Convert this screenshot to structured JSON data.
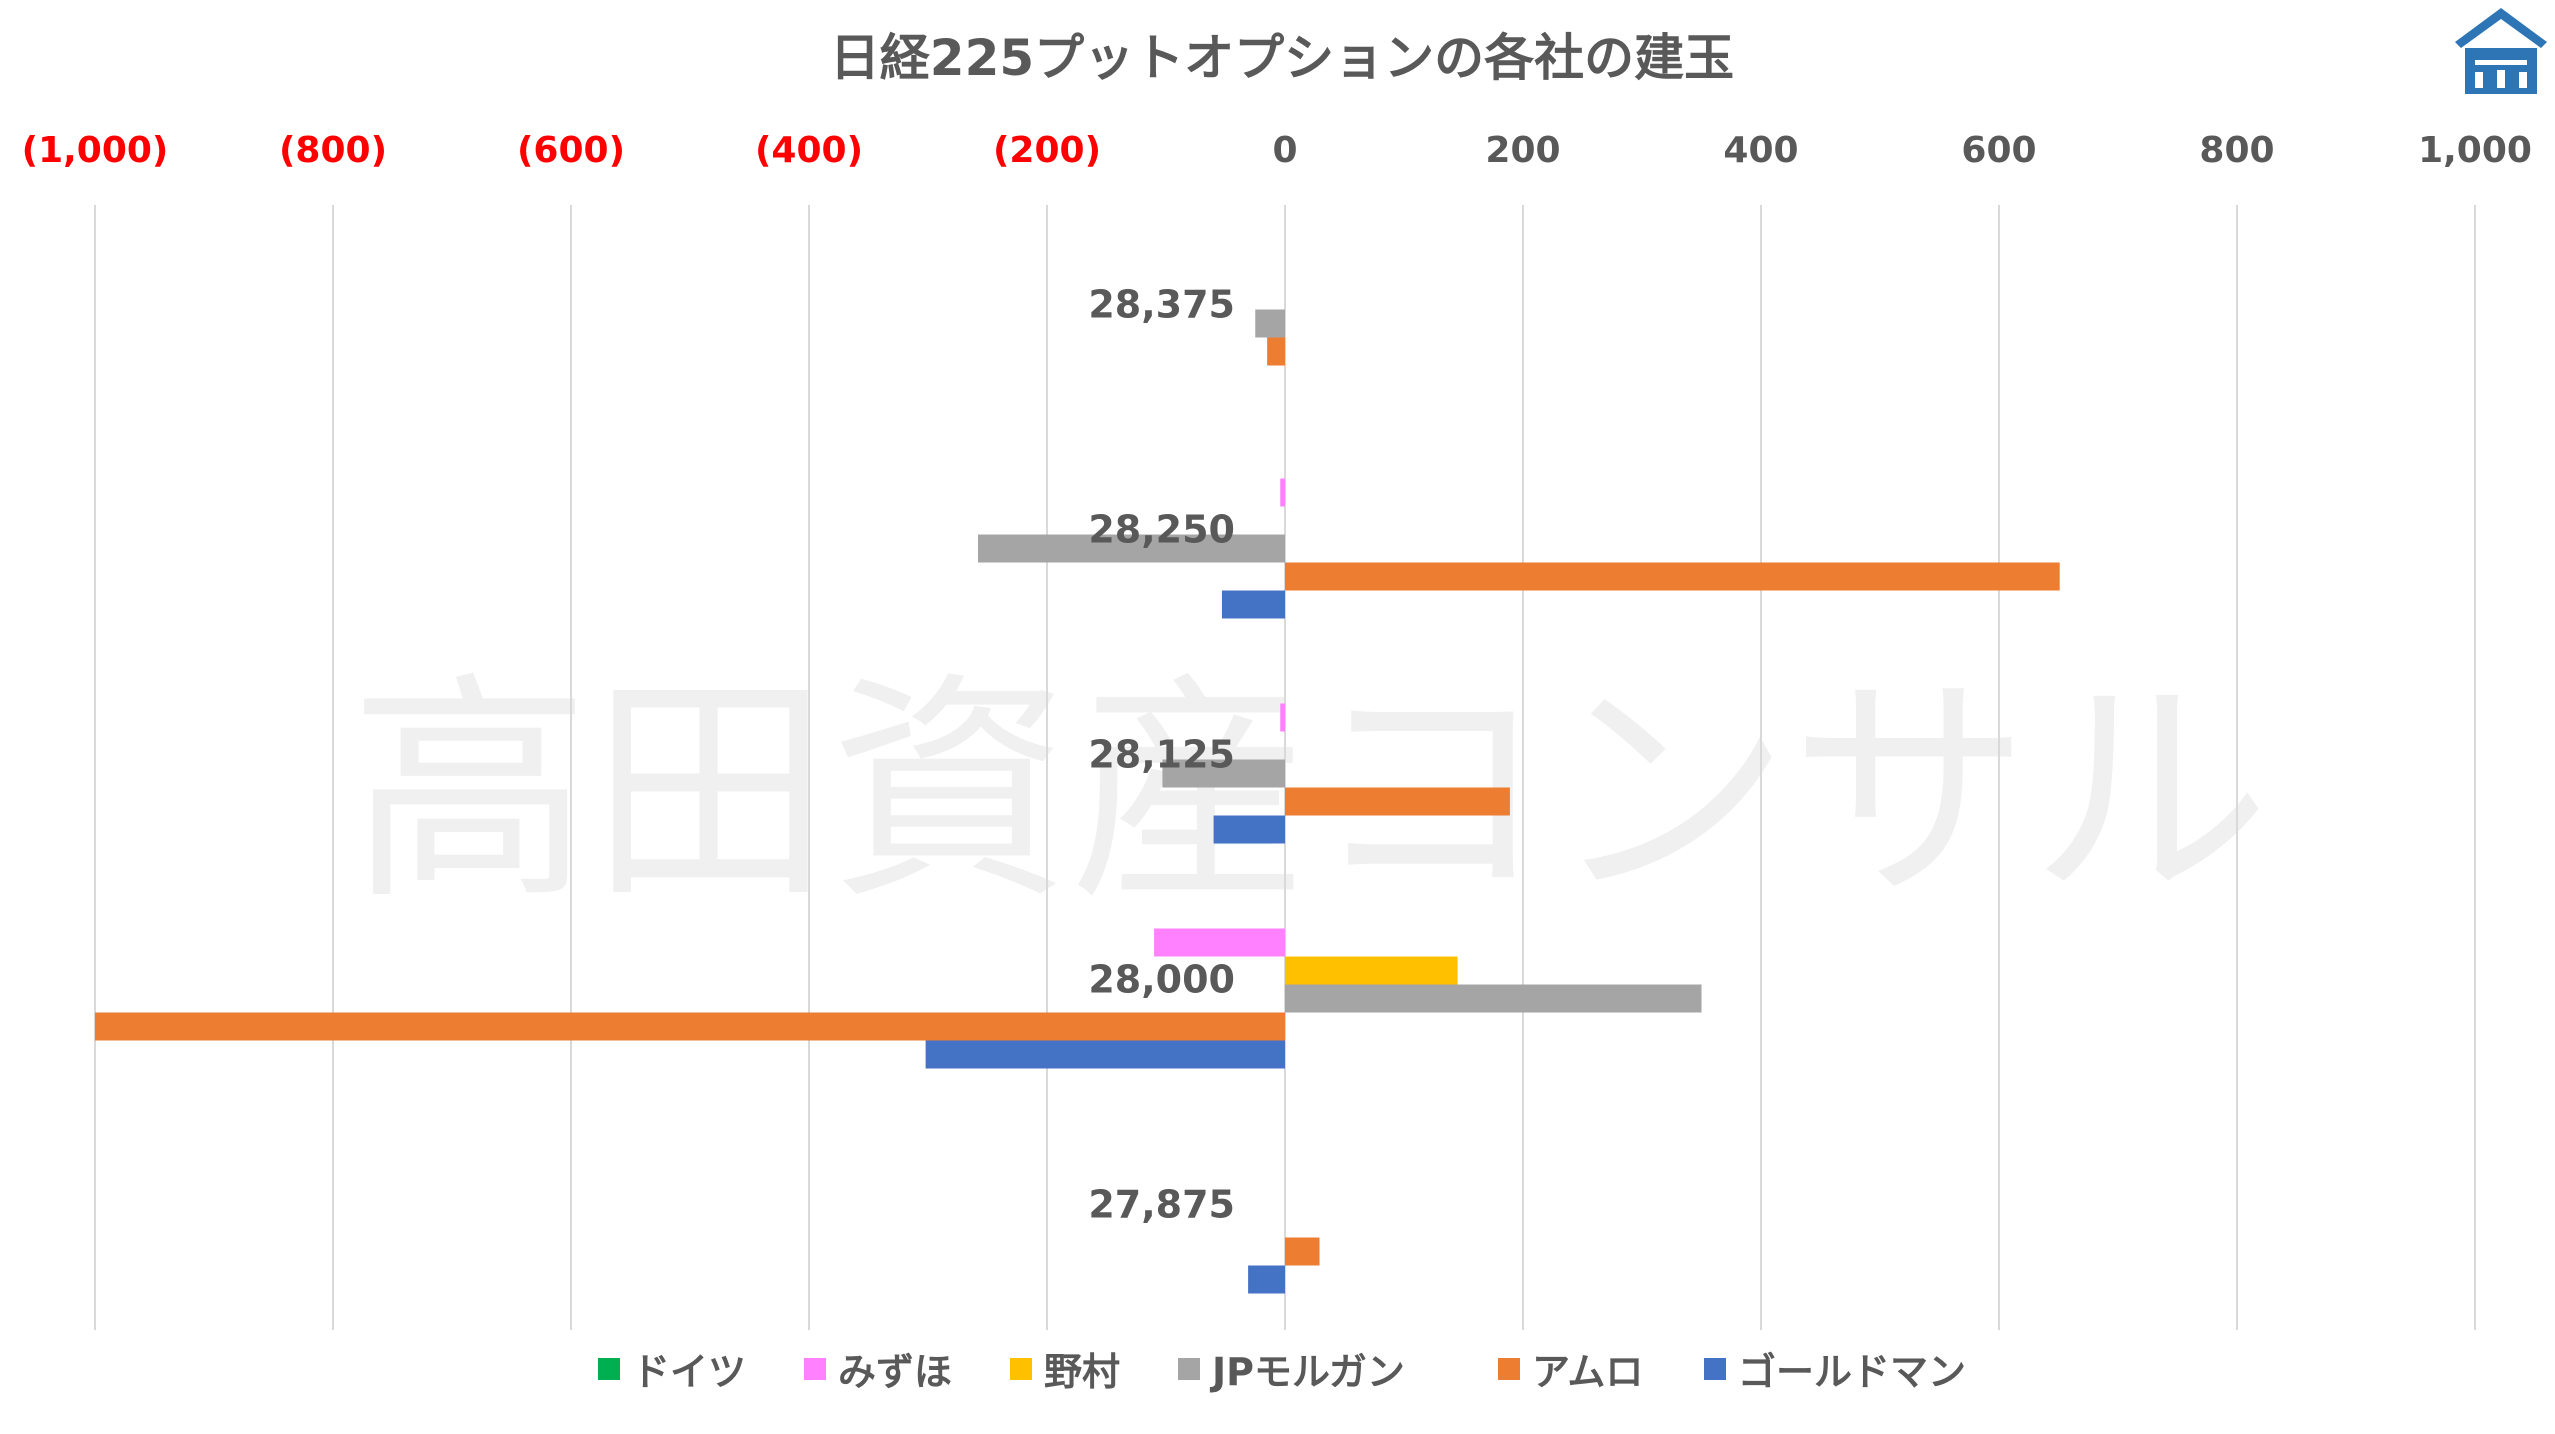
{
  "watermark": "高田資産コンサル",
  "colors": {
    "grid": "#d9d9d9",
    "tick_negative": "#ff0000",
    "tick_positive": "#595959",
    "logo": "#2e75b6"
  },
  "chart_data": {
    "type": "bar",
    "orientation": "horizontal",
    "title": "日経225プットオプションの各社の建玉",
    "xlim": [
      -1000,
      1000
    ],
    "x_ticks": [
      -1000,
      -800,
      -600,
      -400,
      -200,
      0,
      200,
      400,
      600,
      800,
      1000
    ],
    "x_tick_labels": [
      "(1,000)",
      "(800)",
      "(600)",
      "(400)",
      "(200)",
      "0",
      "200",
      "400",
      "600",
      "800",
      "1,000"
    ],
    "x_axis_position": "top",
    "grid": true,
    "legend_position": "bottom",
    "categories": [
      "28,375",
      "28,250",
      "28,125",
      "28,000",
      "27,875"
    ],
    "series": [
      {
        "name": "ドイツ",
        "color": "#00b050",
        "values": [
          0,
          0,
          0,
          0,
          0
        ]
      },
      {
        "name": "みずほ",
        "color": "#ff81ff",
        "values": [
          0,
          -4,
          -4,
          -110,
          0
        ]
      },
      {
        "name": "野村",
        "color": "#ffc000",
        "values": [
          0,
          0,
          0,
          145,
          0
        ]
      },
      {
        "name": "JPモルガン",
        "color": "#a5a5a5",
        "values": [
          -25,
          -258,
          -103,
          350,
          0
        ]
      },
      {
        "name": "アムロ",
        "color": "#ed7d31",
        "values": [
          -15,
          651,
          189,
          -1000,
          29
        ]
      },
      {
        "name": "ゴールドマン",
        "color": "#4472c4",
        "values": [
          0,
          -53,
          -60,
          -302,
          -31
        ]
      }
    ]
  }
}
